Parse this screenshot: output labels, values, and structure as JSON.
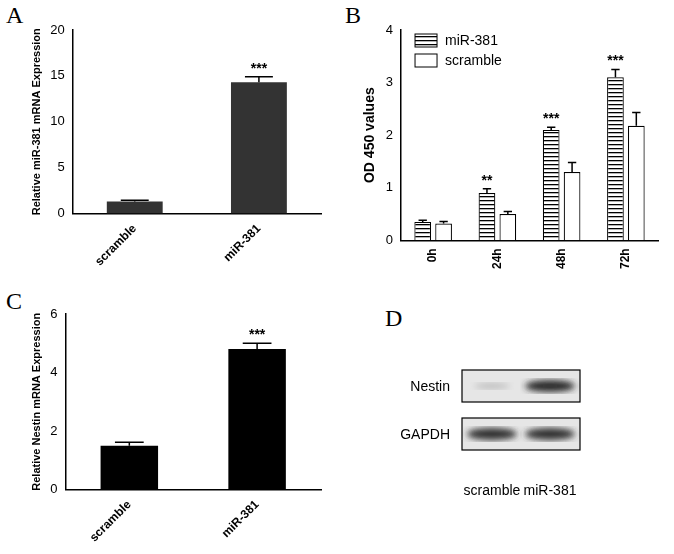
{
  "chart_data": [
    {
      "type": "bar",
      "title": "A",
      "categories": [
        "scramble",
        "miR-381"
      ],
      "values": [
        1.3,
        14.3
      ],
      "errors": [
        0.15,
        0.6
      ],
      "annotations": [
        null,
        "***"
      ],
      "colors": [
        "#333333",
        "#333333"
      ],
      "ylabel": "Relative miR-381 mRNA Expression",
      "ylim": [
        0,
        20
      ],
      "yticks": [
        0,
        5,
        10,
        15,
        20
      ],
      "grid": false
    },
    {
      "type": "bar",
      "title": "B",
      "categories": [
        "0h",
        "24h",
        "48h",
        "72h"
      ],
      "series": [
        {
          "name": "miR-381",
          "color": "#000000",
          "values": [
            0.35,
            0.9,
            2.1,
            3.1
          ],
          "errors": [
            0.03,
            0.08,
            0.05,
            0.15
          ],
          "annotations": [
            null,
            "**",
            "***",
            "***"
          ]
        },
        {
          "name": "scramble",
          "color": "#ffffff",
          "values": [
            0.32,
            0.5,
            1.3,
            2.18
          ],
          "errors": [
            0.04,
            0.05,
            0.18,
            0.25
          ]
        }
      ],
      "ylabel": "OD 450 values",
      "ylim": [
        0,
        4
      ],
      "yticks": [
        0,
        1,
        2,
        3,
        4
      ],
      "grid": false,
      "legend": "upper left"
    },
    {
      "type": "bar",
      "title": "C",
      "categories": [
        "scramble",
        "miR-381"
      ],
      "values": [
        1.5,
        4.8
      ],
      "errors": [
        0.12,
        0.2
      ],
      "annotations": [
        null,
        "***"
      ],
      "colors": [
        "#000000",
        "#000000"
      ],
      "ylabel": "Relative Nestin mRNA Expression",
      "ylim": [
        0,
        6
      ],
      "yticks": [
        0,
        2,
        4,
        6
      ],
      "grid": false
    }
  ],
  "blot": {
    "title": "D",
    "rows": [
      "Nestin",
      "GAPDH"
    ],
    "lanes": [
      "scramble",
      "miR-381"
    ]
  }
}
